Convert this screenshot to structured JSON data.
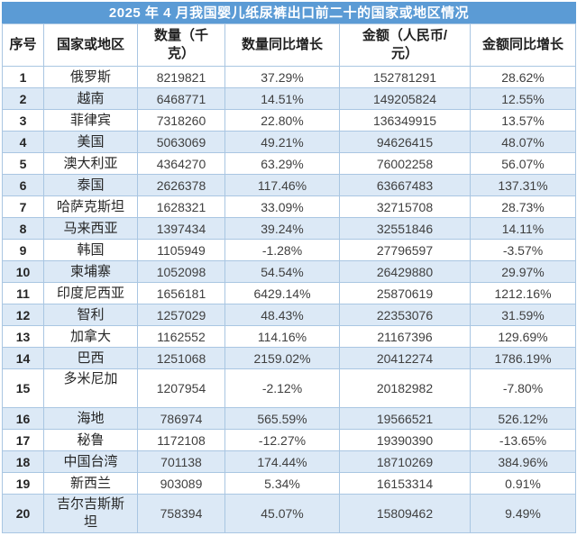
{
  "title": "2025 年 4 月我国婴儿纸尿裤出口前二十的国家或地区情况",
  "colors": {
    "accent": "#5B9BD5",
    "row_alt": "#DCE9F6",
    "border": "#A9C6E2",
    "title_text": "#FFFFFF"
  },
  "chart_data": {
    "type": "table",
    "title": "2025 年 4 月我国婴儿纸尿裤出口前二十的国家或地区情况",
    "columns": [
      "序号",
      "国家或地区",
      "数量（千\n克）",
      "数量同比增长",
      "金额（人民币/\n元）",
      "金额同比增长"
    ],
    "rows": [
      [
        "1",
        "俄罗斯",
        "8219821",
        "37.29%",
        "152781291",
        "28.62%"
      ],
      [
        "2",
        "越南",
        "6468771",
        "14.51%",
        "149205824",
        "12.55%"
      ],
      [
        "3",
        "菲律宾",
        "7318260",
        "22.80%",
        "136349915",
        "13.57%"
      ],
      [
        "4",
        "美国",
        "5063069",
        "49.21%",
        "94626415",
        "48.07%"
      ],
      [
        "5",
        "澳大利亚",
        "4364270",
        "63.29%",
        "76002258",
        "56.07%"
      ],
      [
        "6",
        "泰国",
        "2626378",
        "117.46%",
        "63667483",
        "137.31%"
      ],
      [
        "7",
        "哈萨克斯坦",
        "1628321",
        "33.09%",
        "32715708",
        "28.73%"
      ],
      [
        "8",
        "马来西亚",
        "1397434",
        "39.24%",
        "32551846",
        "14.11%"
      ],
      [
        "9",
        "韩国",
        "1105949",
        "-1.28%",
        "27796597",
        "-3.57%"
      ],
      [
        "10",
        "柬埔寨",
        "1052098",
        "54.54%",
        "26429880",
        "29.97%"
      ],
      [
        "11",
        "印度尼西亚",
        "1656181",
        "6429.14%",
        "25870619",
        "1212.16%"
      ],
      [
        "12",
        "智利",
        "1257029",
        "48.43%",
        "22353076",
        "31.59%"
      ],
      [
        "13",
        "加拿大",
        "1162552",
        "114.16%",
        "21167396",
        "129.69%"
      ],
      [
        "14",
        "巴西",
        "1251068",
        "2159.02%",
        "20412274",
        "1786.19%"
      ],
      [
        "15",
        "多米尼加\n ",
        "1207954",
        "-2.12%",
        "20182982",
        "-7.80%"
      ],
      [
        "16",
        "海地",
        "786974",
        "565.59%",
        "19566521",
        "526.12%"
      ],
      [
        "17",
        "秘鲁",
        "1172108",
        "-12.27%",
        "19390390",
        "-13.65%"
      ],
      [
        "18",
        "中国台湾",
        "701138",
        "174.44%",
        "18710269",
        "384.96%"
      ],
      [
        "19",
        "新西兰",
        "903089",
        "5.34%",
        "16153314",
        "0.91%"
      ],
      [
        "20",
        "吉尔吉斯斯\n坦",
        "758394",
        "45.07%",
        "15809462",
        "9.49%"
      ]
    ]
  }
}
